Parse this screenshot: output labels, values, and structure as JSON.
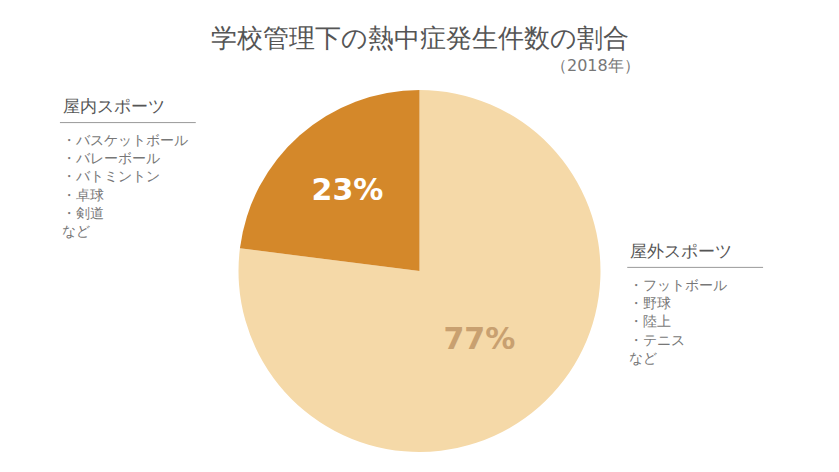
{
  "chart_data": {
    "type": "pie",
    "title": "学校管理下の熱中症発生件数の割合",
    "subtitle": "（2018年）",
    "categories": [
      "屋外スポーツ",
      "屋内スポーツ"
    ],
    "values": [
      77,
      23
    ],
    "value_labels": [
      "77%",
      "23%"
    ],
    "colors": [
      "#F5D9A8",
      "#D4882A"
    ],
    "data_labels": true,
    "annotations": [
      "・フットボール\n・野球\n・陸上\n・テニス\nなど",
      "・バスケットボール\n・バレーボール\n・バトミントン\n・卓球\n・剣道\nなど"
    ]
  }
}
